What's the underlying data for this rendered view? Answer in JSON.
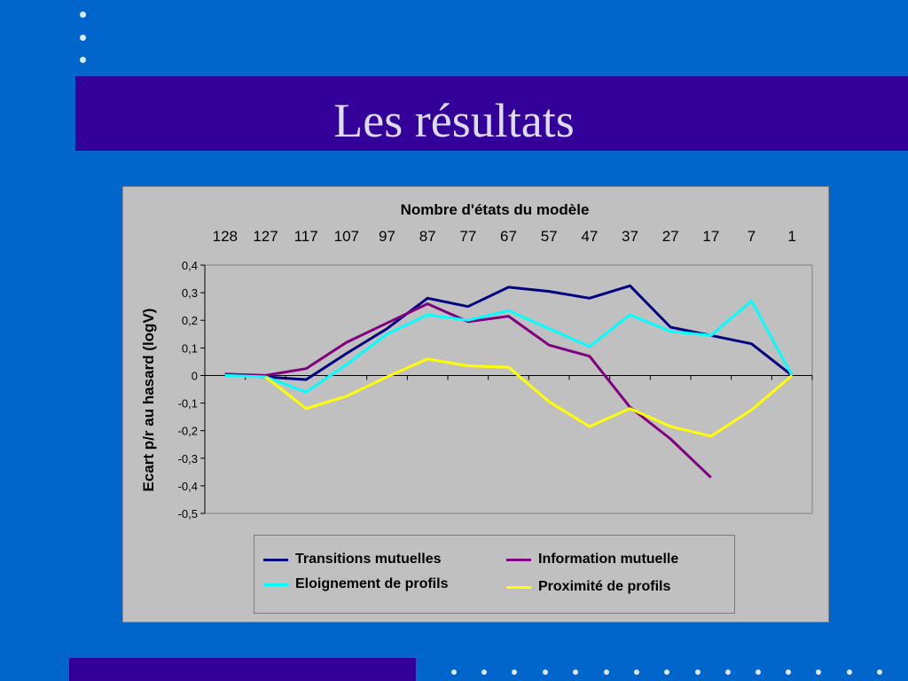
{
  "slide": {
    "title": "Les résultats"
  },
  "chart_data": {
    "type": "line",
    "title": "Nombre d'états du modèle",
    "ylabel": "Ecart p/r au hasard (logV)",
    "x": [
      "128",
      "127",
      "117",
      "107",
      "97",
      "87",
      "77",
      "67",
      "57",
      "47",
      "37",
      "27",
      "17",
      "7",
      "1"
    ],
    "ylim": [
      -0.5,
      0.4
    ],
    "yticks": [
      "0,4",
      "0,3",
      "0,2",
      "0,1",
      "0",
      "-0,1",
      "-0,2",
      "-0,3",
      "-0,4",
      "-0,5"
    ],
    "grid": false,
    "legend_position": "bottom",
    "series": [
      {
        "name": "Transitions mutuelles",
        "color": "#000080",
        "values": [
          0.005,
          -0.005,
          -0.015,
          0.08,
          0.17,
          0.28,
          0.25,
          0.32,
          0.305,
          0.28,
          0.325,
          0.175,
          0.145,
          0.115,
          0.0
        ]
      },
      {
        "name": "Information mutuelle",
        "color": "#800080",
        "values": [
          0.005,
          0.0,
          0.025,
          0.12,
          0.19,
          0.26,
          0.195,
          0.215,
          0.11,
          0.07,
          -0.115,
          -0.23,
          -0.37,
          null,
          null
        ]
      },
      {
        "name": "Eloignement de profils",
        "color": "#00ffff",
        "values": [
          0.0,
          -0.005,
          -0.06,
          0.04,
          0.15,
          0.22,
          0.2,
          0.235,
          0.17,
          0.105,
          0.22,
          0.16,
          0.145,
          0.27,
          0.0
        ]
      },
      {
        "name": "Proximité de profils",
        "color": "#ffff00",
        "values": [
          null,
          -0.005,
          -0.12,
          -0.075,
          -0.005,
          0.06,
          0.035,
          0.03,
          -0.095,
          -0.185,
          -0.12,
          -0.185,
          -0.22,
          -0.125,
          0.0
        ]
      }
    ]
  }
}
